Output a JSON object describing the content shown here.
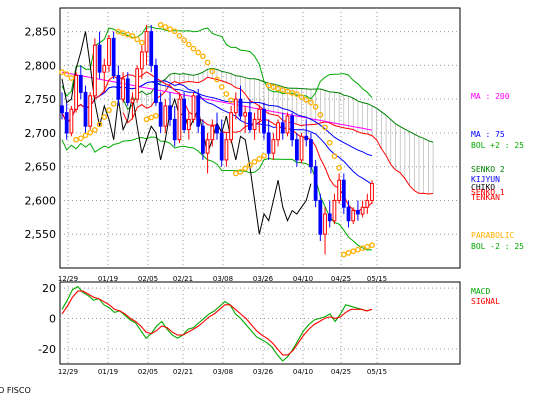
{
  "chart_data": [
    {
      "type": "candlestick",
      "panel": "price",
      "y_ticks": [
        2550,
        2600,
        2650,
        2700,
        2750,
        2800,
        2850
      ],
      "y_tick_labels": [
        "2,550",
        "2,600",
        "2,650",
        "2,700",
        "2,750",
        "2,800",
        "2,850"
      ],
      "ylim": [
        2500,
        2885
      ],
      "x_tick_labels": [
        "12/29",
        "01/19",
        "02/05",
        "02/21",
        "03/08",
        "03/26",
        "04/10",
        "04/25",
        "05/15"
      ],
      "grid": true,
      "legend": [
        {
          "label": "MA : 200",
          "color": "#ff00ff"
        },
        {
          "label": "MA : 75",
          "color": "#0000ff"
        },
        {
          "label": "BOL +2 : 25",
          "color": "#00aa00"
        },
        {
          "label": "SENKO 2",
          "color": "#008000"
        },
        {
          "label": "KIJYUN",
          "color": "#0000ff"
        },
        {
          "label": "CHIKO",
          "color": "#000000"
        },
        {
          "label": "SENKO 1",
          "color": "#ff0000"
        },
        {
          "label": "TENKAN",
          "color": "#ff0000"
        },
        {
          "label": "PARABOLIC",
          "color": "#ffb000"
        },
        {
          "label": "BOL -2 : 25",
          "color": "#00aa00"
        }
      ],
      "candles": [
        [
          2740,
          2760,
          2720,
          2730
        ],
        [
          2730,
          2745,
          2690,
          2700
        ],
        [
          2700,
          2740,
          2695,
          2735
        ],
        [
          2735,
          2790,
          2730,
          2785
        ],
        [
          2785,
          2800,
          2750,
          2760
        ],
        [
          2760,
          2770,
          2700,
          2710
        ],
        [
          2710,
          2760,
          2705,
          2755
        ],
        [
          2755,
          2840,
          2750,
          2830
        ],
        [
          2830,
          2850,
          2780,
          2790
        ],
        [
          2790,
          2810,
          2760,
          2800
        ],
        [
          2800,
          2845,
          2790,
          2840
        ],
        [
          2840,
          2850,
          2780,
          2785
        ],
        [
          2785,
          2800,
          2740,
          2750
        ],
        [
          2750,
          2790,
          2745,
          2780
        ],
        [
          2780,
          2790,
          2740,
          2745
        ],
        [
          2745,
          2760,
          2720,
          2750
        ],
        [
          2750,
          2800,
          2745,
          2795
        ],
        [
          2795,
          2830,
          2780,
          2820
        ],
        [
          2820,
          2860,
          2800,
          2850
        ],
        [
          2850,
          2860,
          2790,
          2800
        ],
        [
          2800,
          2810,
          2740,
          2745
        ],
        [
          2745,
          2760,
          2700,
          2710
        ],
        [
          2710,
          2750,
          2700,
          2740
        ],
        [
          2740,
          2760,
          2710,
          2720
        ],
        [
          2720,
          2740,
          2680,
          2690
        ],
        [
          2690,
          2760,
          2685,
          2750
        ],
        [
          2750,
          2760,
          2700,
          2705
        ],
        [
          2705,
          2730,
          2690,
          2720
        ],
        [
          2720,
          2760,
          2715,
          2755
        ],
        [
          2755,
          2765,
          2700,
          2710
        ],
        [
          2710,
          2720,
          2660,
          2670
        ],
        [
          2670,
          2700,
          2640,
          2690
        ],
        [
          2690,
          2720,
          2680,
          2710
        ],
        [
          2710,
          2730,
          2690,
          2700
        ],
        [
          2700,
          2720,
          2650,
          2660
        ],
        [
          2660,
          2700,
          2650,
          2690
        ],
        [
          2690,
          2740,
          2685,
          2730
        ],
        [
          2730,
          2760,
          2720,
          2750
        ],
        [
          2750,
          2770,
          2720,
          2725
        ],
        [
          2725,
          2740,
          2700,
          2730
        ],
        [
          2730,
          2750,
          2700,
          2705
        ],
        [
          2705,
          2730,
          2690,
          2720
        ],
        [
          2720,
          2740,
          2700,
          2735
        ],
        [
          2735,
          2745,
          2690,
          2700
        ],
        [
          2700,
          2720,
          2660,
          2670
        ],
        [
          2670,
          2700,
          2660,
          2690
        ],
        [
          2690,
          2720,
          2680,
          2715
        ],
        [
          2715,
          2730,
          2690,
          2700
        ],
        [
          2700,
          2730,
          2695,
          2725
        ],
        [
          2725,
          2730,
          2680,
          2690
        ],
        [
          2690,
          2700,
          2650,
          2660
        ],
        [
          2660,
          2700,
          2655,
          2695
        ],
        [
          2695,
          2720,
          2680,
          2690
        ],
        [
          2690,
          2700,
          2640,
          2650
        ],
        [
          2650,
          2660,
          2590,
          2600
        ],
        [
          2600,
          2610,
          2540,
          2550
        ],
        [
          2550,
          2590,
          2520,
          2580
        ],
        [
          2580,
          2600,
          2560,
          2570
        ],
        [
          2570,
          2610,
          2565,
          2600
        ],
        [
          2600,
          2640,
          2595,
          2630
        ],
        [
          2630,
          2640,
          2580,
          2590
        ],
        [
          2590,
          2600,
          2560,
          2570
        ],
        [
          2570,
          2590,
          2565,
          2585
        ],
        [
          2585,
          2600,
          2570,
          2580
        ],
        [
          2580,
          2600,
          2575,
          2590
        ],
        [
          2590,
          2610,
          2580,
          2600
        ],
        [
          2600,
          2630,
          2595,
          2625
        ]
      ]
    },
    {
      "type": "line",
      "panel": "macd",
      "y_ticks": [
        -20,
        0,
        20
      ],
      "y_tick_labels": [
        "-20",
        "0",
        "20"
      ],
      "ylim": [
        -30,
        24
      ],
      "x_tick_labels": [
        "12/29",
        "01/19",
        "02/05",
        "02/21",
        "03/08",
        "03/26",
        "04/10",
        "04/25",
        "05/15"
      ],
      "grid": true,
      "series": [
        {
          "name": "MACD",
          "color": "#00aa00",
          "values": [
            6,
            12,
            19,
            21,
            17,
            15,
            12,
            13,
            9,
            7,
            4,
            5,
            2,
            -1,
            -3,
            -8,
            -13,
            -10,
            -5,
            -2,
            -7,
            -11,
            -13,
            -11,
            -7,
            -6,
            -3,
            0,
            3,
            5,
            8,
            11,
            9,
            3,
            0,
            -4,
            -8,
            -12,
            -14,
            -16,
            -19,
            -24,
            -28,
            -25,
            -20,
            -14,
            -8,
            -4,
            -1,
            0,
            1,
            3,
            -2,
            3,
            9,
            8,
            7,
            6,
            5,
            6
          ]
        },
        {
          "name": "SIGNAL",
          "color": "#ff0000",
          "values": [
            3,
            8,
            14,
            18,
            18,
            16,
            14,
            13,
            11,
            9,
            6,
            5,
            3,
            0,
            -2,
            -5,
            -9,
            -10,
            -8,
            -5,
            -6,
            -9,
            -11,
            -11,
            -9,
            -7,
            -5,
            -2,
            1,
            3,
            6,
            9,
            9,
            6,
            3,
            0,
            -4,
            -8,
            -11,
            -13,
            -16,
            -20,
            -24,
            -24,
            -21,
            -16,
            -11,
            -7,
            -4,
            -2,
            0,
            1,
            0,
            1,
            4,
            6,
            6,
            6,
            5,
            6
          ]
        }
      ]
    }
  ],
  "colors": {
    "up_candle": "#ff0000",
    "down_candle": "#0000ff",
    "grid": "#999999",
    "bollinger": "#00aa00",
    "parabolic": "#ffb000",
    "cloud_hatch": "#aaaaaa"
  },
  "credit": "O FISCO"
}
